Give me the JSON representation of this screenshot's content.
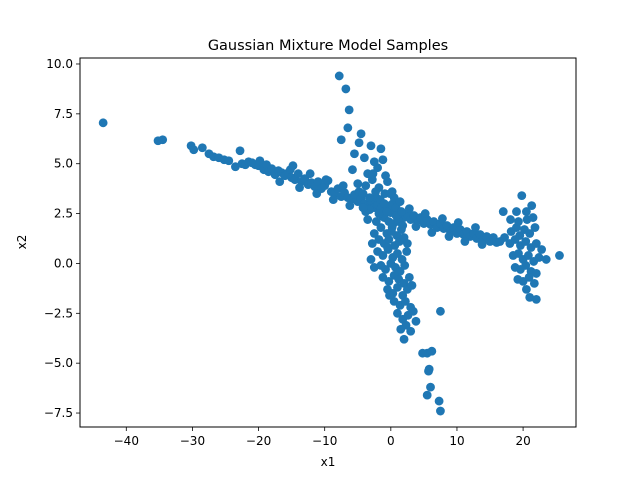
{
  "chart_data": {
    "type": "scatter",
    "title": "Gaussian Mixture Model Samples",
    "xlabel": "x1",
    "ylabel": "x2",
    "xlim": [
      -47,
      28
    ],
    "ylim": [
      -8.2,
      10.3
    ],
    "xticks": [
      {
        "value": -40,
        "label": "−40"
      },
      {
        "value": -30,
        "label": "−30"
      },
      {
        "value": -20,
        "label": "−20"
      },
      {
        "value": -10,
        "label": "−10"
      },
      {
        "value": 0,
        "label": "0"
      },
      {
        "value": 10,
        "label": "10"
      },
      {
        "value": 20,
        "label": "20"
      }
    ],
    "yticks": [
      {
        "value": -7.5,
        "label": "−7.5"
      },
      {
        "value": -5.0,
        "label": "−5.0"
      },
      {
        "value": -2.5,
        "label": "−2.5"
      },
      {
        "value": 0.0,
        "label": "0.0"
      },
      {
        "value": 2.5,
        "label": "2.5"
      },
      {
        "value": 5.0,
        "label": "5.0"
      },
      {
        "value": 7.5,
        "label": "7.5"
      },
      {
        "value": 10.0,
        "label": "10.0"
      }
    ],
    "grid": false,
    "marker_color": "#1f77b4",
    "series": [
      {
        "points": [
          [
            -43.5,
            7.05
          ],
          [
            -35.2,
            6.15
          ],
          [
            -34.5,
            6.2
          ],
          [
            -30.2,
            5.9
          ],
          [
            -29.8,
            5.7
          ],
          [
            -28.5,
            5.8
          ],
          [
            -27.5,
            5.5
          ],
          [
            -26.8,
            5.35
          ],
          [
            -26.0,
            5.3
          ],
          [
            -25.2,
            5.2
          ],
          [
            -24.5,
            5.15
          ],
          [
            -23.5,
            4.85
          ],
          [
            -22.8,
            5.65
          ],
          [
            -22.5,
            5.0
          ],
          [
            -22.0,
            4.95
          ],
          [
            -21.5,
            5.1
          ],
          [
            -21.0,
            5.05
          ],
          [
            -20.5,
            4.95
          ],
          [
            -20.0,
            4.9
          ],
          [
            -19.8,
            5.15
          ],
          [
            -19.2,
            4.7
          ],
          [
            -18.8,
            4.95
          ],
          [
            -18.5,
            4.6
          ],
          [
            -18.0,
            4.75
          ],
          [
            -17.5,
            4.45
          ],
          [
            -17.0,
            4.65
          ],
          [
            -16.5,
            4.55
          ],
          [
            -16.0,
            4.4
          ],
          [
            -15.5,
            4.55
          ],
          [
            -15.2,
            4.7
          ],
          [
            -15.0,
            4.3
          ],
          [
            -14.5,
            4.2
          ],
          [
            -14.0,
            4.5
          ],
          [
            -13.5,
            4.1
          ],
          [
            -13.0,
            4.25
          ],
          [
            -12.5,
            3.95
          ],
          [
            -12.0,
            4.05
          ],
          [
            -11.5,
            3.85
          ],
          [
            -11.0,
            4.1
          ],
          [
            -10.5,
            3.75
          ],
          [
            -10.0,
            3.9
          ],
          [
            -9.5,
            4.15
          ],
          [
            -9.0,
            3.6
          ],
          [
            -8.5,
            3.5
          ],
          [
            -8.0,
            3.75
          ],
          [
            -7.5,
            3.35
          ],
          [
            -7.0,
            3.55
          ],
          [
            -6.5,
            3.3
          ],
          [
            -6.0,
            3.2
          ],
          [
            -5.5,
            3.45
          ],
          [
            -5.0,
            3.1
          ],
          [
            -4.5,
            3.25
          ],
          [
            -4.0,
            3.0
          ],
          [
            -3.5,
            2.9
          ],
          [
            -3.0,
            3.15
          ],
          [
            -2.5,
            2.8
          ],
          [
            -2.0,
            2.95
          ],
          [
            -1.5,
            2.75
          ],
          [
            -1.0,
            2.6
          ],
          [
            -0.5,
            2.85
          ],
          [
            0.0,
            2.55
          ],
          [
            0.5,
            2.7
          ],
          [
            1.0,
            2.4
          ],
          [
            1.5,
            2.55
          ],
          [
            2.0,
            2.3
          ],
          [
            2.5,
            2.45
          ],
          [
            3.0,
            2.2
          ],
          [
            3.5,
            2.4
          ],
          [
            4.0,
            2.15
          ],
          [
            4.5,
            2.3
          ],
          [
            5.0,
            2.0
          ],
          [
            5.5,
            2.2
          ],
          [
            6.0,
            1.95
          ],
          [
            6.5,
            2.1
          ],
          [
            7.0,
            1.8
          ],
          [
            7.5,
            2.0
          ],
          [
            8.0,
            1.75
          ],
          [
            8.5,
            1.9
          ],
          [
            9.0,
            1.6
          ],
          [
            9.5,
            1.8
          ],
          [
            10.0,
            1.5
          ],
          [
            10.5,
            1.7
          ],
          [
            11.0,
            1.45
          ],
          [
            11.5,
            1.6
          ],
          [
            12.0,
            1.35
          ],
          [
            12.5,
            1.5
          ],
          [
            13.0,
            1.25
          ],
          [
            13.5,
            1.45
          ],
          [
            14.0,
            1.2
          ],
          [
            14.5,
            1.35
          ],
          [
            15.0,
            1.1
          ],
          [
            15.5,
            1.3
          ],
          [
            16.0,
            1.05
          ],
          [
            -16.8,
            4.1
          ],
          [
            -13.8,
            3.8
          ],
          [
            -11.2,
            3.5
          ],
          [
            -8.7,
            3.2
          ],
          [
            -6.2,
            2.9
          ],
          [
            -3.8,
            2.6
          ],
          [
            -1.2,
            2.35
          ],
          [
            1.2,
            2.1
          ],
          [
            3.8,
            1.85
          ],
          [
            6.2,
            1.55
          ],
          [
            8.8,
            1.35
          ],
          [
            11.2,
            1.1
          ],
          [
            13.8,
            0.95
          ],
          [
            -14.8,
            4.9
          ],
          [
            -12.2,
            4.5
          ],
          [
            -9.8,
            4.2
          ],
          [
            -7.2,
            3.9
          ],
          [
            -4.8,
            3.6
          ],
          [
            -2.2,
            3.3
          ],
          [
            0.3,
            3.0
          ],
          [
            2.8,
            2.75
          ],
          [
            5.2,
            2.5
          ],
          [
            7.8,
            2.25
          ],
          [
            10.2,
            2.05
          ],
          [
            12.8,
            1.8
          ],
          [
            -7.8,
            9.4
          ],
          [
            -6.8,
            8.75
          ],
          [
            -6.3,
            7.7
          ],
          [
            -6.5,
            6.8
          ],
          [
            -7.5,
            6.2
          ],
          [
            -4.5,
            6.5
          ],
          [
            -4.8,
            6.05
          ],
          [
            -5.5,
            5.5
          ],
          [
            -3.0,
            5.9
          ],
          [
            -1.5,
            5.75
          ],
          [
            -4.0,
            5.3
          ],
          [
            -2.5,
            5.1
          ],
          [
            -1.2,
            5.2
          ],
          [
            -5.8,
            4.7
          ],
          [
            -3.5,
            4.5
          ],
          [
            -2.0,
            4.8
          ],
          [
            -0.8,
            4.4
          ],
          [
            -5.0,
            4.0
          ],
          [
            -3.8,
            3.9
          ],
          [
            -2.8,
            4.2
          ],
          [
            -1.8,
            3.8
          ],
          [
            -0.5,
            4.1
          ],
          [
            0.2,
            3.6
          ],
          [
            -4.2,
            3.5
          ],
          [
            -3.2,
            3.3
          ],
          [
            -2.3,
            3.6
          ],
          [
            -1.6,
            3.2
          ],
          [
            -0.9,
            3.5
          ],
          [
            0.5,
            3.3
          ],
          [
            -0.2,
            2.9
          ],
          [
            0.8,
            2.8
          ],
          [
            1.4,
            3.1
          ],
          [
            -1.0,
            2.3
          ],
          [
            -0.3,
            2.1
          ],
          [
            0.4,
            2.0
          ],
          [
            1.1,
            2.2
          ],
          [
            1.8,
            1.9
          ],
          [
            -1.5,
            1.8
          ],
          [
            -0.6,
            1.5
          ],
          [
            0.1,
            1.6
          ],
          [
            0.9,
            1.4
          ],
          [
            1.6,
            1.7
          ],
          [
            -2.5,
            1.5
          ],
          [
            -1.8,
            1.2
          ],
          [
            -1.0,
            1.0
          ],
          [
            -0.3,
            1.2
          ],
          [
            0.6,
            0.9
          ],
          [
            1.3,
            1.1
          ],
          [
            2.0,
            1.3
          ],
          [
            2.5,
            1.0
          ],
          [
            -2.0,
            0.6
          ],
          [
            -1.2,
            0.4
          ],
          [
            -0.4,
            0.7
          ],
          [
            0.3,
            0.3
          ],
          [
            1.0,
            0.5
          ],
          [
            1.7,
            0.2
          ],
          [
            2.4,
            0.6
          ],
          [
            -3.0,
            0.2
          ],
          [
            -2.5,
            -0.2
          ],
          [
            -1.5,
            -0.1
          ],
          [
            -0.8,
            -0.3
          ],
          [
            0.0,
            0.0
          ],
          [
            0.7,
            -0.2
          ],
          [
            1.4,
            -0.4
          ],
          [
            2.1,
            -0.1
          ],
          [
            -1.2,
            -0.7
          ],
          [
            -0.3,
            -0.9
          ],
          [
            0.5,
            -0.6
          ],
          [
            1.2,
            -0.8
          ],
          [
            2.0,
            -1.0
          ],
          [
            2.8,
            -0.7
          ],
          [
            -0.5,
            -1.3
          ],
          [
            0.3,
            -1.5
          ],
          [
            1.0,
            -1.2
          ],
          [
            1.8,
            -1.6
          ],
          [
            2.5,
            -1.3
          ],
          [
            3.2,
            -1.1
          ],
          [
            0.5,
            -1.9
          ],
          [
            1.4,
            -2.1
          ],
          [
            2.2,
            -1.9
          ],
          [
            3.0,
            -2.2
          ],
          [
            1.0,
            -2.5
          ],
          [
            1.8,
            -2.8
          ],
          [
            2.6,
            -2.6
          ],
          [
            3.4,
            -2.4
          ],
          [
            1.5,
            -3.3
          ],
          [
            2.3,
            -3.1
          ],
          [
            3.0,
            -3.4
          ],
          [
            3.8,
            -2.9
          ],
          [
            2.0,
            -3.8
          ],
          [
            -0.5,
            0.8
          ],
          [
            0.2,
            1.8
          ],
          [
            -1.8,
            2.5
          ],
          [
            0.8,
            2.4
          ],
          [
            -2.2,
            2.1
          ],
          [
            -0.6,
            2.6
          ],
          [
            1.6,
            2.6
          ],
          [
            -3.5,
            2.2
          ],
          [
            -2.8,
            1.0
          ],
          [
            -0.2,
            -1.6
          ],
          [
            7.5,
            -2.4
          ],
          [
            5.5,
            -4.5
          ],
          [
            6.2,
            -4.4
          ],
          [
            5.7,
            -5.4
          ],
          [
            6.0,
            -6.2
          ],
          [
            5.5,
            -6.6
          ],
          [
            7.3,
            -6.9
          ],
          [
            7.5,
            -7.4
          ],
          [
            4.8,
            -4.5
          ],
          [
            5.8,
            -5.3
          ],
          [
            -0.1,
            3.5
          ],
          [
            -1.0,
            3.0
          ],
          [
            -2.7,
            4.5
          ],
          [
            -3.2,
            2.7
          ],
          [
            -4.2,
            2.8
          ],
          [
            17.0,
            2.6
          ],
          [
            19.0,
            2.6
          ],
          [
            19.8,
            3.4
          ],
          [
            20.5,
            2.6
          ],
          [
            21.3,
            2.9
          ],
          [
            18.2,
            1.6
          ],
          [
            19.0,
            1.8
          ],
          [
            19.5,
            1.4
          ],
          [
            20.2,
            1.7
          ],
          [
            21.0,
            1.5
          ],
          [
            21.8,
            1.8
          ],
          [
            18.0,
            1.0
          ],
          [
            18.8,
            1.2
          ],
          [
            19.6,
            0.9
          ],
          [
            20.4,
            1.1
          ],
          [
            21.2,
            0.8
          ],
          [
            22.0,
            1.0
          ],
          [
            22.8,
            0.7
          ],
          [
            18.5,
            0.4
          ],
          [
            19.3,
            0.5
          ],
          [
            20.0,
            0.2
          ],
          [
            20.8,
            0.4
          ],
          [
            21.6,
            0.1
          ],
          [
            22.4,
            0.3
          ],
          [
            23.5,
            0.2
          ],
          [
            18.8,
            -0.2
          ],
          [
            19.6,
            -0.3
          ],
          [
            20.4,
            -0.1
          ],
          [
            21.2,
            -0.4
          ],
          [
            22.0,
            -0.5
          ],
          [
            19.2,
            -0.8
          ],
          [
            20.0,
            -0.9
          ],
          [
            20.9,
            -0.7
          ],
          [
            21.7,
            -1.0
          ],
          [
            20.5,
            -1.3
          ],
          [
            21.0,
            -1.7
          ],
          [
            22.0,
            -1.8
          ],
          [
            25.5,
            0.4
          ],
          [
            17.2,
            1.3
          ],
          [
            16.5,
            1.1
          ],
          [
            20.6,
            2.2
          ],
          [
            19.3,
            2.1
          ],
          [
            21.5,
            2.3
          ],
          [
            18.1,
            2.2
          ]
        ]
      }
    ]
  }
}
